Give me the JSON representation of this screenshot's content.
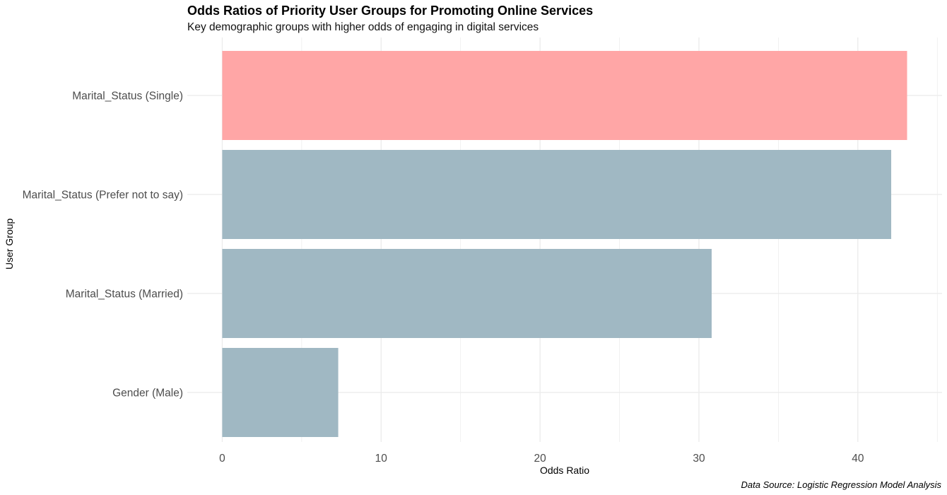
{
  "chart_data": {
    "type": "bar",
    "orientation": "horizontal",
    "title": "Odds Ratios of Priority User Groups for Promoting Online Services",
    "subtitle": "Key demographic groups with higher odds of engaging in digital services",
    "caption": "Data Source: Logistic Regression Model Analysis",
    "xlabel": "Odds Ratio",
    "ylabel": "User Group",
    "categories": [
      "Marital_Status (Single)",
      "Marital_Status (Prefer not to say)",
      "Marital_Status (Married)",
      "Gender (Male)"
    ],
    "values": [
      43.1,
      42.1,
      30.8,
      7.3
    ],
    "highlight_category": "Marital_Status (Single)",
    "colors": {
      "highlight": "#ffa6a6",
      "default": "#a0b8c3",
      "grid": "#ebebeb"
    },
    "xlim": [
      -2.2,
      45.3
    ],
    "xticks": [
      0,
      10,
      20,
      30,
      40
    ],
    "grid": true,
    "legend": "none"
  }
}
